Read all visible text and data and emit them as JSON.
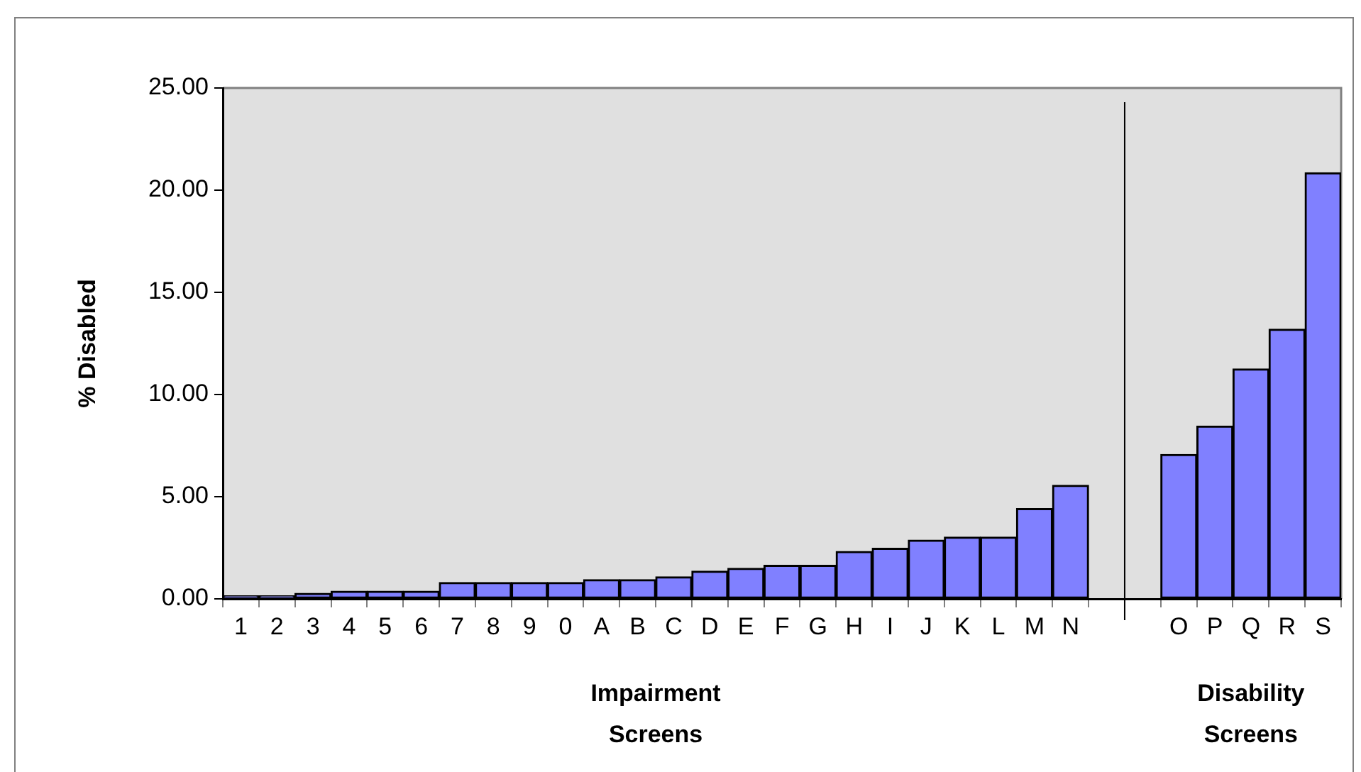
{
  "chart_data": {
    "type": "bar",
    "ylabel": "% Disabled",
    "categories": [
      "1",
      "2",
      "3",
      "4",
      "5",
      "6",
      "7",
      "8",
      "9",
      "0",
      "A",
      "B",
      "C",
      "D",
      "E",
      "F",
      "G",
      "H",
      "I",
      "J",
      "K",
      "L",
      "M",
      "N",
      null,
      null,
      "O",
      "P",
      "Q",
      "R",
      "S"
    ],
    "values": [
      0.15,
      0.15,
      0.27,
      0.38,
      0.38,
      0.38,
      0.8,
      0.8,
      0.8,
      0.8,
      0.94,
      0.94,
      1.08,
      1.36,
      1.5,
      1.64,
      1.64,
      2.32,
      2.48,
      2.88,
      3.02,
      3.02,
      4.42,
      5.56,
      null,
      null,
      7.07,
      8.46,
      11.25,
      13.2,
      20.85
    ],
    "color": "#8080ff",
    "ylim": [
      0,
      25
    ],
    "yticks": [
      {
        "value": 0,
        "label": "0.00"
      },
      {
        "value": 5,
        "label": "5.00"
      },
      {
        "value": 10,
        "label": "10.00"
      },
      {
        "value": 15,
        "label": "15.00"
      },
      {
        "value": 20,
        "label": "20.00"
      },
      {
        "value": 25,
        "label": "25.00"
      }
    ],
    "annotations": [
      "Impairment Screens",
      "Disability Screens"
    ],
    "grid": false,
    "legend": false
  }
}
